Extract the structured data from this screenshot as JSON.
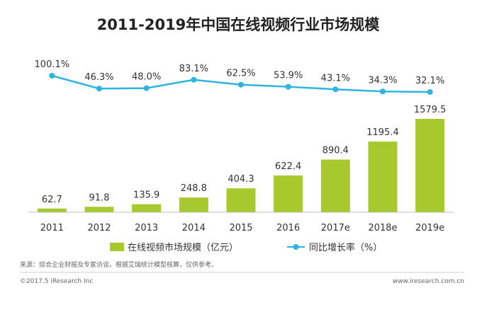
{
  "chart_data": {
    "type": "bar",
    "title": "2011-2019年中国在线视频行业市场规模",
    "categories": [
      "2011",
      "2012",
      "2013",
      "2014",
      "2015",
      "2016",
      "2017e",
      "2018e",
      "2019e"
    ],
    "series": [
      {
        "name": "在线视频市场规模（亿元）",
        "type": "bar",
        "values": [
          62.7,
          91.8,
          135.9,
          248.8,
          404.3,
          622.4,
          890.4,
          1195.4,
          1579.5
        ],
        "labels": [
          "62.7",
          "91.8",
          "135.9",
          "248.8",
          "404.3",
          "622.4",
          "890.4",
          "1195.4",
          "1579.5"
        ],
        "color": "#A7C92E"
      },
      {
        "name": "同比增长率（%）",
        "type": "line",
        "values": [
          100.1,
          46.3,
          48.0,
          83.1,
          62.5,
          53.9,
          43.1,
          34.3,
          32.1
        ],
        "labels": [
          "100.1%",
          "46.3%",
          "48.0%",
          "83.1%",
          "62.5%",
          "53.9%",
          "43.1%",
          "34.3%",
          "32.1%"
        ],
        "color": "#2EB4E0"
      }
    ],
    "legend_placement": "bottom",
    "grid": false
  },
  "source": "来源：综合企业财报及专家访谈，根据艾瑞统计模型核算，仅供参考。",
  "copyright": "©2017.5 iResearch Inc",
  "website": "www.iresearch.com.cn"
}
